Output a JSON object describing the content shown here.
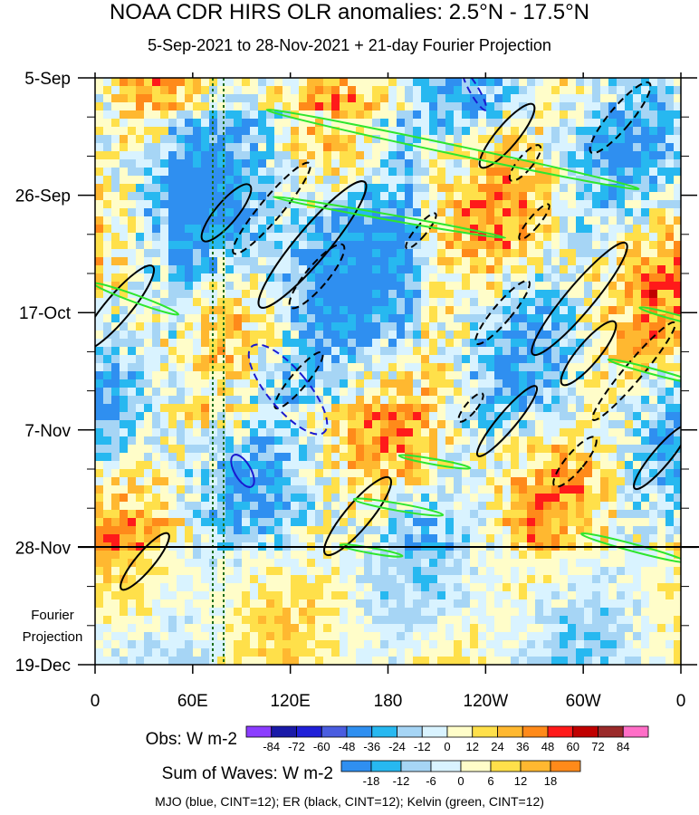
{
  "title": "NOAA CDR HIRS OLR anomalies: 2.5°N - 17.5°N",
  "subtitle": "5-Sep-2021 to 28-Nov-2021 + 21-day Fourier Projection",
  "chart_data": {
    "type": "heatmap",
    "x_axis": {
      "tick_labels": [
        "0",
        "60E",
        "120E",
        "180",
        "120W",
        "60W",
        "0"
      ],
      "range": [
        "0",
        "0"
      ]
    },
    "y_axis": {
      "tick_labels": [
        "5-Sep",
        "26-Sep",
        "17-Oct",
        "7-Nov",
        "28-Nov",
        "19-Dec"
      ],
      "range": [
        "5-Sep-2021",
        "19-Dec-2021"
      ],
      "projection_label": "Fourier Projection"
    },
    "observation_end": "28-Nov",
    "obs_colorbar": {
      "label": "Obs: W m-2",
      "levels": [
        "-84",
        "-72",
        "-60",
        "-48",
        "-36",
        "-24",
        "-12",
        "0",
        "12",
        "24",
        "36",
        "48",
        "60",
        "72",
        "84"
      ],
      "colors": [
        "#8b3dff",
        "#1a1aa8",
        "#2020d8",
        "#4a5de0",
        "#2f8ff0",
        "#27b8f0",
        "#a6d5f5",
        "#d9f3ff",
        "#fffdc9",
        "#ffe04a",
        "#ffb830",
        "#ff8a1a",
        "#ff1a1a",
        "#c00000",
        "#9a2a2a",
        "#ff6ec7"
      ]
    },
    "waves_colorbar": {
      "label": "Sum of Waves: W m-2",
      "levels": [
        "-18",
        "-12",
        "-6",
        "0",
        "6",
        "12",
        "18"
      ],
      "colors": [
        "#2f8ff0",
        "#27b8f0",
        "#a6d5f5",
        "#d9f3ff",
        "#fffdc9",
        "#ffe04a",
        "#ffb830",
        "#ff8a1a"
      ]
    },
    "contours": [
      {
        "name": "MJO",
        "color": "#1a1ad0",
        "cint": 12
      },
      {
        "name": "ER",
        "color": "#000000",
        "cint": 12
      },
      {
        "name": "Kelvin",
        "color": "#2ee62e",
        "cint": 12
      }
    ]
  },
  "footer": "MJO (blue, CINT=12); ER (black, CINT=12); Kelvin (green, CINT=12)"
}
